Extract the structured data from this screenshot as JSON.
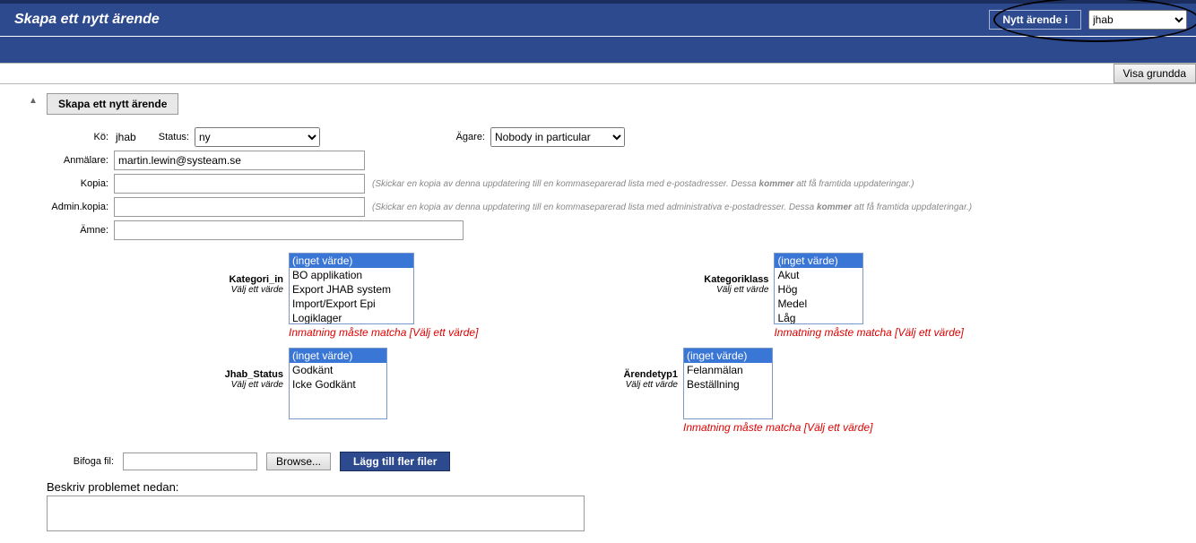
{
  "colors": {
    "primary": "#2e4a8f",
    "error": "#d00",
    "hint": "#888"
  },
  "top": {
    "title": "Skapa ett nytt ärende",
    "new_btn": "Nytt ärende i",
    "queue_selected": "jhab"
  },
  "toolbar": {
    "show_basics": "Visa grundda"
  },
  "section": {
    "tab": "Skapa ett nytt ärende"
  },
  "form": {
    "queue_label": "Kö:",
    "queue_value": "jhab",
    "status_label": "Status:",
    "status_value": "ny",
    "owner_label": "Ägare:",
    "owner_value": "Nobody in particular",
    "reporter_label": "Anmälare:",
    "reporter_value": "martin.lewin@systeam.se",
    "copy_label": "Kopia:",
    "copy_hint_pre": "(Skickar en kopia av denna uppdatering till en kommaseparerad lista med e-postadresser. Dessa ",
    "copy_hint_bold": "kommer",
    "copy_hint_post": " att få framtida uppdateringar.)",
    "admincopy_label": "Admin.kopia:",
    "admincopy_hint_pre": "(Skickar en kopia av denna uppdatering till en kommaseparerad lista med administrativa e-postadresser. Dessa ",
    "admincopy_hint_bold": "kommer",
    "admincopy_hint_post": " att få framtida uppdateringar.)",
    "subject_label": "Ämne:"
  },
  "cats": {
    "select_hint": "Välj ett värde",
    "error_msg": "Inmatning måste matcha [Välj ett värde]",
    "kategori_in": {
      "label": "Kategori_in",
      "options": [
        "(inget värde)",
        "BO applikation",
        "Export JHAB system",
        "Import/Export Epi",
        "Logiklager"
      ]
    },
    "kategoriklass": {
      "label": "Kategoriklass",
      "options": [
        "(inget värde)",
        "Akut",
        "Hög",
        "Medel",
        "Låg"
      ]
    },
    "jhab_status": {
      "label": "Jhab_Status",
      "options": [
        "(inget värde)",
        "Godkänt",
        "Icke Godkänt"
      ]
    },
    "arendetyp1": {
      "label": "Ärendetyp1",
      "options": [
        "(inget värde)",
        "Felanmälan",
        "Beställning"
      ]
    }
  },
  "files": {
    "label": "Bifoga fil:",
    "browse": "Browse...",
    "add_more": "Lägg till fler filer"
  },
  "desc": {
    "label": "Beskriv problemet nedan:"
  }
}
